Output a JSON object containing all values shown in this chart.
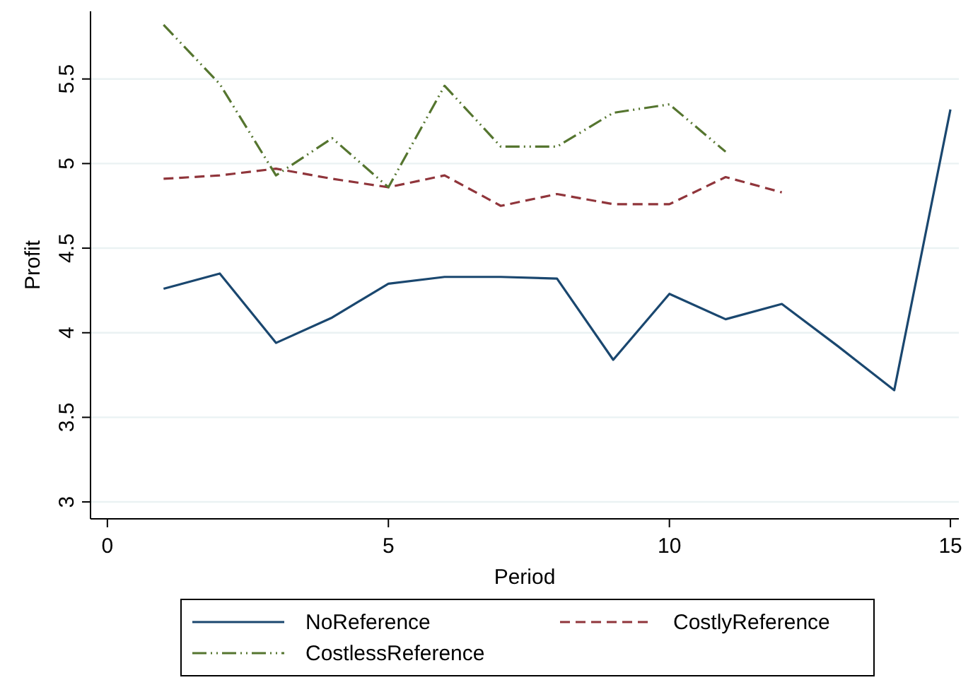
{
  "chart_data": {
    "type": "line",
    "xlabel": "Period",
    "ylabel": "Profit",
    "xlim": [
      -0.3,
      15.15
    ],
    "xticks": [
      0,
      5,
      10,
      15
    ],
    "ylim": [
      2.9,
      5.9
    ],
    "yticks": [
      3,
      3.5,
      4,
      4.5,
      5,
      5.5
    ],
    "grid": "y",
    "legend": "bottom",
    "x": [
      1,
      2,
      3,
      4,
      5,
      6,
      7,
      8,
      9,
      10,
      11,
      12,
      13,
      14,
      15
    ],
    "series": [
      {
        "name": "NoReference",
        "color": "#1a476f",
        "line_style": "solid",
        "values": [
          4.26,
          4.35,
          3.94,
          4.09,
          4.29,
          4.33,
          4.33,
          4.32,
          3.84,
          4.23,
          4.08,
          4.17,
          3.92,
          3.66,
          5.32
        ]
      },
      {
        "name": "CostlyReference",
        "color": "#90353b",
        "line_style": "dashed",
        "values": [
          4.91,
          4.93,
          4.97,
          4.91,
          4.86,
          4.93,
          4.75,
          4.82,
          4.76,
          4.76,
          4.92,
          4.83,
          null,
          null,
          null
        ]
      },
      {
        "name": "CostlessReference",
        "color": "#55752f",
        "line_style": "dashdot",
        "values": [
          5.82,
          5.47,
          4.93,
          5.15,
          4.86,
          5.46,
          5.1,
          5.1,
          5.3,
          5.35,
          5.07,
          null,
          null,
          null,
          null
        ]
      }
    ]
  }
}
